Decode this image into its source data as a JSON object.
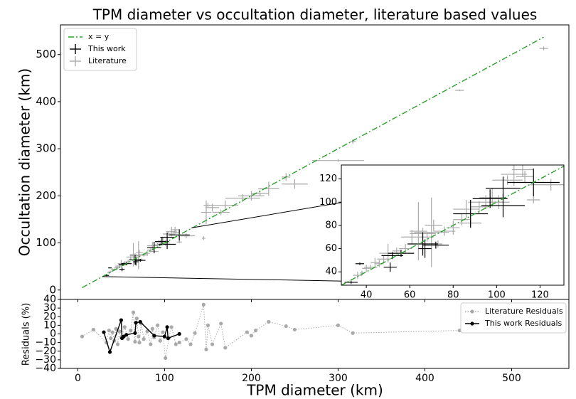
{
  "chart_data": [
    {
      "type": "errorbar",
      "title": "TPM diameter vs occultation diameter, literature based values",
      "ylabel": "Occultation diameter (km)",
      "xlim": [
        -20,
        566
      ],
      "ylim": [
        -20,
        563
      ],
      "xticks": [
        0,
        100,
        200,
        300,
        400,
        500
      ],
      "yticks": [
        0,
        100,
        200,
        300,
        400,
        500
      ],
      "legend": "upper left",
      "series": [
        {
          "name": "x = y",
          "color": "#2ca02c",
          "style": "dashdot",
          "x": [
            5,
            537
          ],
          "values": [
            5,
            537
          ]
        },
        {
          "name": "This work",
          "color": "#000000",
          "x": [
            33,
            37,
            51,
            52,
            56,
            66,
            67,
            72,
            88,
            97,
            103,
            103,
            117
          ],
          "values": [
            31,
            47,
            44,
            54,
            56,
            64,
            60,
            63,
            90,
            103,
            97,
            112,
            117
          ],
          "xerr": [
            3,
            2,
            3,
            5,
            6,
            7,
            3,
            6,
            8,
            8,
            10,
            8,
            12
          ],
          "yerr": [
            1,
            1,
            4,
            3,
            3,
            10,
            8,
            3,
            12,
            8,
            10,
            10,
            12
          ]
        },
        {
          "name": "Literature",
          "color": "#a9a9a9",
          "x": [
            33,
            36,
            38,
            40,
            42,
            44,
            46,
            48,
            50,
            54,
            58,
            61,
            64,
            66,
            68,
            70,
            71,
            73,
            76,
            80,
            84,
            86,
            88,
            92,
            95,
            98,
            101,
            105,
            108,
            113,
            117,
            112,
            125,
            145,
            148,
            150,
            155,
            165,
            170,
            190,
            200,
            210,
            220,
            240,
            250,
            300,
            317,
            440,
            537
          ],
          "values": [
            31,
            37,
            39,
            43,
            44,
            48,
            47,
            51,
            56,
            58,
            60,
            70,
            75,
            73,
            70,
            74,
            80,
            64,
            75,
            78,
            85,
            94,
            82,
            96,
            100,
            104,
            100,
            119,
            124,
            122,
            102,
            128,
            115,
            110,
            165,
            180,
            175,
            165,
            180,
            195,
            200,
            205,
            215,
            240,
            225,
            275,
            315,
            424,
            513
          ],
          "xerr": [
            1,
            2,
            1,
            2,
            3,
            2,
            2,
            3,
            4,
            2,
            3,
            5,
            4,
            6,
            3,
            8,
            4,
            2,
            5,
            3,
            4,
            6,
            5,
            4,
            8,
            6,
            5,
            7,
            6,
            4,
            3,
            5,
            10,
            2,
            6,
            5,
            8,
            10,
            15,
            20,
            15,
            10,
            12,
            5,
            15,
            30,
            3,
            5,
            5
          ],
          "yerr": [
            2,
            3,
            2,
            3,
            2,
            4,
            3,
            3,
            8,
            3,
            4,
            6,
            25,
            5,
            4,
            30,
            5,
            3,
            4,
            6,
            5,
            8,
            4,
            5,
            6,
            8,
            6,
            4,
            10,
            5,
            3,
            6,
            5,
            4,
            25,
            5,
            8,
            6,
            10,
            8,
            10,
            6,
            15,
            8,
            10,
            3,
            5,
            2,
            4
          ]
        }
      ],
      "inset": {
        "xlim": [
          28.5,
          131
        ],
        "ylim": [
          28.5,
          132
        ],
        "xticks": [
          40,
          60,
          80,
          100,
          120
        ],
        "yticks": [
          40,
          60,
          80,
          100,
          120
        ]
      }
    },
    {
      "type": "line",
      "xlabel": "TPM diameter (km)",
      "ylabel": "Residuals (%)",
      "xlim": [
        -20,
        566
      ],
      "ylim": [
        -40,
        40
      ],
      "xticks": [
        0,
        100,
        200,
        300,
        400,
        500
      ],
      "yticks": [
        40,
        30,
        20,
        10,
        0,
        {
          "value": -10,
          "label": "−10"
        },
        {
          "value": -20,
          "label": "−20"
        },
        {
          "value": -30,
          "label": "−30"
        },
        {
          "value": -40,
          "label": "−40"
        }
      ],
      "legend": "upper right",
      "series": [
        {
          "name": "Literature Residuals",
          "color": "#a9a9a9",
          "style": "dotted",
          "x": [
            5,
            18,
            33,
            36,
            38,
            40,
            42,
            44,
            46,
            48,
            50,
            54,
            58,
            61,
            64,
            66,
            68,
            70,
            71,
            73,
            76,
            80,
            84,
            86,
            88,
            92,
            95,
            98,
            101,
            105,
            108,
            113,
            117,
            125,
            130,
            135,
            145,
            148,
            150,
            155,
            165,
            170,
            195,
            200,
            205,
            220,
            240,
            250,
            300,
            317,
            440,
            537
          ],
          "values": [
            -3,
            5,
            -10,
            4,
            -5,
            2,
            -8,
            6,
            -12,
            3,
            -4,
            8,
            -6,
            4,
            25,
            -9,
            18,
            -3,
            -10,
            12,
            -6,
            3,
            -12,
            6,
            -4,
            10,
            -8,
            2,
            -28,
            -5,
            8,
            -12,
            -10,
            -6,
            -12,
            1,
            34,
            -18,
            10,
            -12,
            12,
            -16,
            2,
            -2,
            4,
            14,
            9,
            5,
            10,
            1,
            4,
            5
          ]
        },
        {
          "name": "This work Residuals",
          "color": "#000000",
          "style": "solid",
          "x": [
            30,
            37,
            50,
            51,
            53,
            56,
            66,
            67,
            72,
            88,
            100,
            103,
            104,
            117
          ],
          "values": [
            2,
            -21,
            16,
            -5,
            -3,
            -1,
            1,
            13,
            14,
            -2,
            -3,
            8,
            -5,
            0
          ]
        }
      ]
    }
  ]
}
